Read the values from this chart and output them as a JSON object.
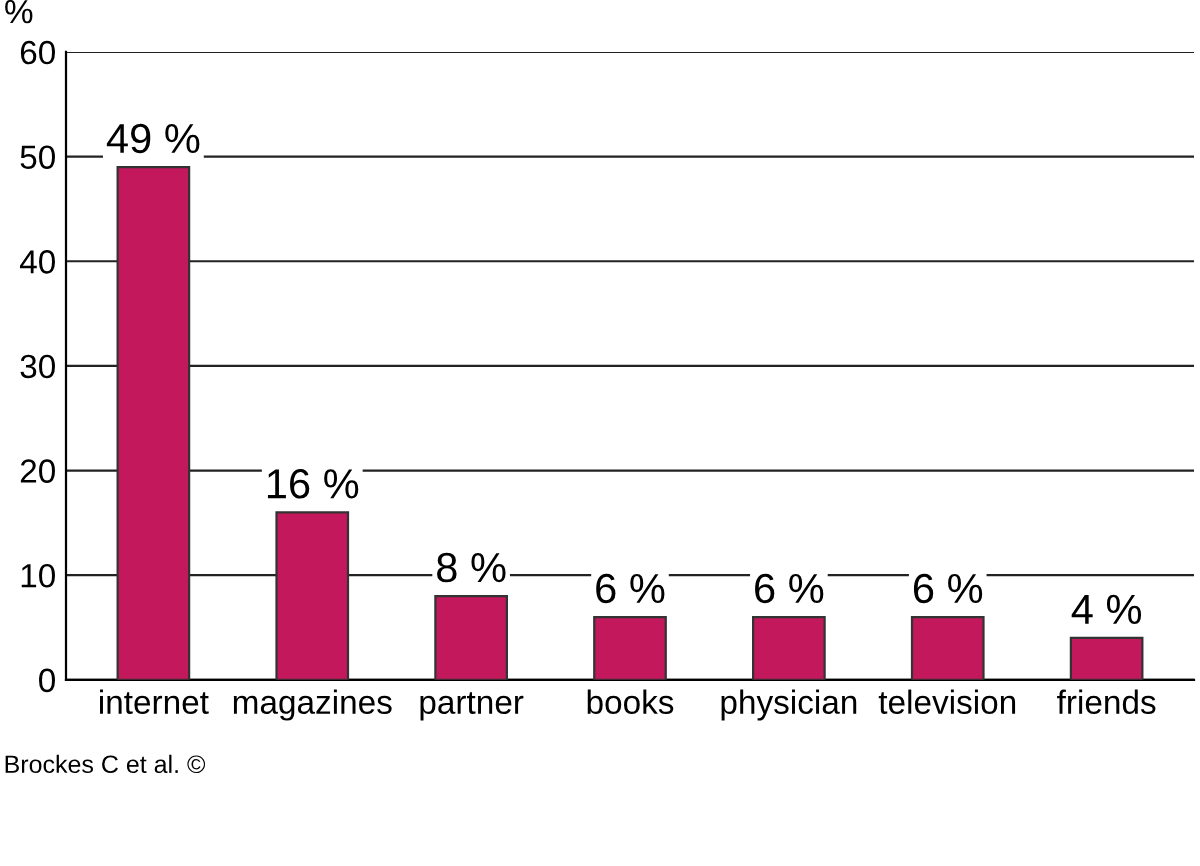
{
  "chart_data": {
    "type": "bar",
    "ylabel": "%",
    "categories": [
      "internet",
      "magazines",
      "partner",
      "books",
      "physician",
      "television",
      "friends"
    ],
    "values": [
      49,
      16,
      8,
      6,
      6,
      6,
      4
    ],
    "value_labels": [
      "49 %",
      "16 %",
      "8 %",
      "6 %",
      "6 %",
      "6 %",
      "4 %"
    ],
    "color": "#c4185c",
    "ylim": [
      0,
      60
    ],
    "yticks": [
      0,
      10,
      20,
      30,
      40,
      50,
      60
    ],
    "grid": "y",
    "annotations": [
      "Brockes C et al. ©"
    ]
  }
}
